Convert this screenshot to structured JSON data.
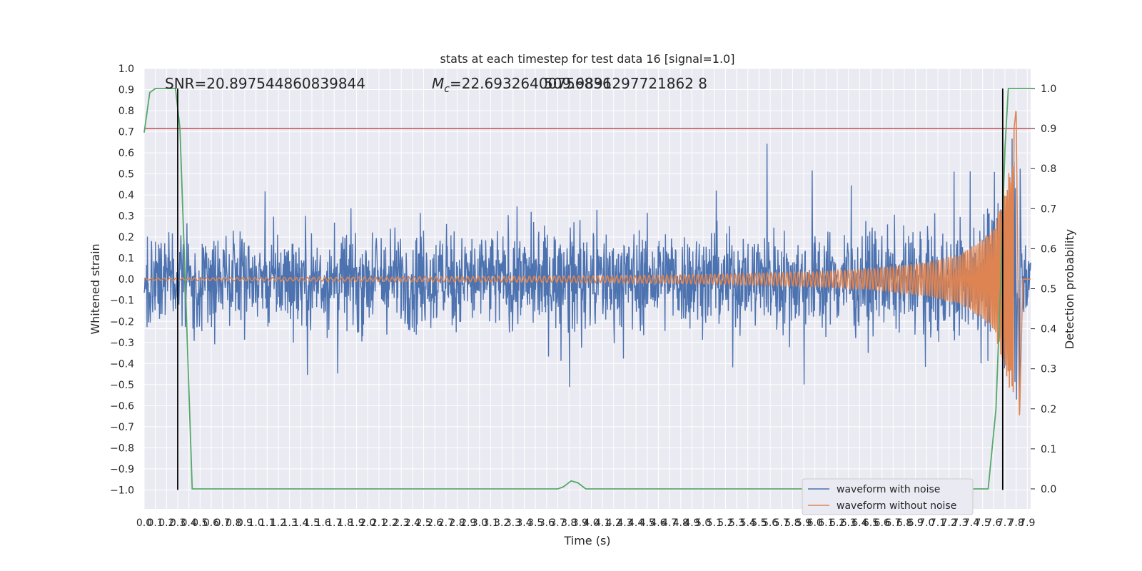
{
  "chart_data": {
    "type": "line",
    "title": "stats at each timestep for test data 16 [signal=1.0]",
    "xlabel": "Time (s)",
    "ylabel": "Whitened strain",
    "y2label": "Detection probability",
    "xlim": [
      0.0,
      7.93
    ],
    "ylim": [
      -1.09,
      1.0
    ],
    "y2lim": [
      -0.05,
      1.05
    ],
    "grid": true,
    "legend_position": "lower-right",
    "x_ticks": [
      "0.0",
      "0.1",
      "0.2",
      "0.3",
      "0.4",
      "0.5",
      "0.6",
      "0.7",
      "0.8",
      "0.9",
      "1.0",
      "1.1",
      "1.2",
      "1.3",
      "1.4",
      "1.5",
      "1.6",
      "1.7",
      "1.8",
      "1.9",
      "2.0",
      "2.1",
      "2.2",
      "2.3",
      "2.4",
      "2.5",
      "2.6",
      "2.7",
      "2.8",
      "2.9",
      "3.0",
      "3.1",
      "3.2",
      "3.3",
      "3.4",
      "3.5",
      "3.6",
      "3.7",
      "3.8",
      "3.9",
      "4.0",
      "4.1",
      "4.2",
      "4.3",
      "4.4",
      "4.5",
      "4.6",
      "4.7",
      "4.8",
      "4.9",
      "5.0",
      "5.1",
      "5.2",
      "5.3",
      "5.4",
      "5.5",
      "5.6",
      "5.7",
      "5.8",
      "5.9",
      "6.0",
      "6.1",
      "6.2",
      "6.3",
      "6.4",
      "6.5",
      "6.6",
      "6.7",
      "6.8",
      "6.9",
      "7.0",
      "7.1",
      "7.2",
      "7.3",
      "7.4",
      "7.5",
      "7.6",
      "7.7",
      "7.8",
      "7.9"
    ],
    "y_ticks": [
      "1.0",
      "0.9",
      "0.8",
      "0.7",
      "0.6",
      "0.5",
      "0.4",
      "0.3",
      "0.2",
      "0.1",
      "0.0",
      "−0.1",
      "−0.2",
      "−0.3",
      "−0.4",
      "−0.5",
      "−0.6",
      "−0.7",
      "−0.8",
      "−0.9",
      "−1.0"
    ],
    "y2_ticks": [
      "1.0",
      "0.9",
      "0.8",
      "0.7",
      "0.6",
      "0.5",
      "0.4",
      "0.3",
      "0.2",
      "0.1",
      "0.0"
    ],
    "annotations": {
      "snr": "SNR=20.897544860839844",
      "mc_prefix": "M",
      "mc_sub": "c",
      "mc_value": "=22.69326400756836",
      "overlap_text": "509.9891297721862 8"
    },
    "series": [
      {
        "name": "waveform with noise",
        "color": "#4c72b0",
        "axis": "left",
        "envelope_summary": "white noise, amplitude mostly within ±0.45, peaks to about 0.77 and -0.67; ends with chirp peak near 0.87 and -1.0 at t≈7.8 s"
      },
      {
        "name": "waveform without noise",
        "color": "#dd8452",
        "axis": "left",
        "points": [
          [
            0.0,
            0.005
          ],
          [
            1.0,
            0.008
          ],
          [
            2.0,
            0.01
          ],
          [
            3.0,
            0.013
          ],
          [
            4.0,
            0.016
          ],
          [
            5.0,
            0.022
          ],
          [
            6.0,
            0.035
          ],
          [
            6.5,
            0.05
          ],
          [
            7.0,
            0.08
          ],
          [
            7.3,
            0.12
          ],
          [
            7.5,
            0.19
          ],
          [
            7.6,
            0.25
          ],
          [
            7.7,
            0.42
          ],
          [
            7.75,
            0.55
          ],
          [
            7.8,
            0.81
          ],
          [
            7.83,
            -0.67
          ],
          [
            7.86,
            0.0
          ],
          [
            7.93,
            0.0
          ]
        ]
      },
      {
        "color": "#55a868",
        "axis": "right",
        "points": [
          [
            0.0,
            0.89
          ],
          [
            0.05,
            0.99
          ],
          [
            0.1,
            1.0
          ],
          [
            0.28,
            1.0
          ],
          [
            0.32,
            0.9
          ],
          [
            0.37,
            0.5
          ],
          [
            0.43,
            0.0
          ],
          [
            3.7,
            0.0
          ],
          [
            3.75,
            0.005
          ],
          [
            3.82,
            0.02
          ],
          [
            3.88,
            0.015
          ],
          [
            3.95,
            0.0
          ],
          [
            7.55,
            0.0
          ],
          [
            7.62,
            0.2
          ],
          [
            7.66,
            0.5
          ],
          [
            7.7,
            0.85
          ],
          [
            7.73,
            1.0
          ],
          [
            7.93,
            1.0
          ]
        ]
      }
    ],
    "threshold": {
      "color": "#c44e52",
      "value": 0.9
    },
    "vertical_markers": {
      "color": "#000000",
      "x": [
        0.3,
        7.68
      ]
    }
  }
}
